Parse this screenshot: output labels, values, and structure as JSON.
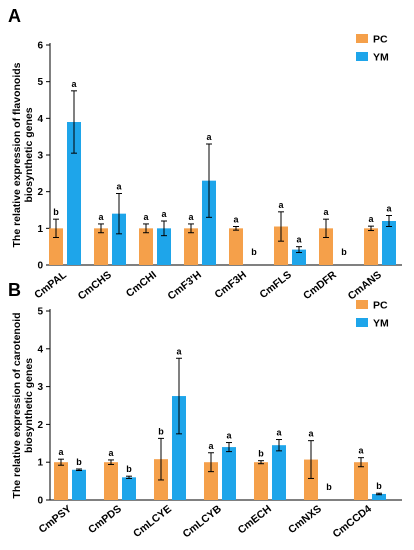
{
  "colors": {
    "PC": "#f5a04a",
    "YM": "#1ea5ea",
    "axis": "#000000"
  },
  "chart_data": [
    {
      "type": "bar",
      "panel_label": "A",
      "ylabel_lines": [
        "The relative expression of flavonoids",
        "biosynthetic genes"
      ],
      "xlabel": "",
      "ylim": [
        0,
        6
      ],
      "yticks": [
        "0",
        "1",
        "2",
        "3",
        "4",
        "5",
        "6"
      ],
      "categories": [
        "CmPAL",
        "CmCHS",
        "CmCHI",
        "CmF3'H",
        "CmF3H",
        "CmFLS",
        "CmDFR",
        "CmANS"
      ],
      "series": [
        {
          "name": "PC",
          "values": [
            1.0,
            1.0,
            1.0,
            1.0,
            1.0,
            1.05,
            1.0,
            1.0
          ],
          "errors": [
            0.25,
            0.12,
            0.12,
            0.12,
            0.05,
            0.4,
            0.25,
            0.06
          ],
          "letters": [
            "b",
            "a",
            "a",
            "a",
            "a",
            "a",
            "a",
            "a"
          ]
        },
        {
          "name": "YM",
          "values": [
            3.9,
            1.4,
            1.0,
            2.3,
            0.0,
            0.42,
            0.0,
            1.2
          ],
          "errors": [
            0.85,
            0.55,
            0.2,
            1.0,
            0.0,
            0.08,
            0.0,
            0.15
          ],
          "letters": [
            "a",
            "a",
            "a",
            "a",
            "b",
            "a",
            "b",
            "a"
          ]
        }
      ],
      "legend": {
        "position": "top-right",
        "entries": [
          "PC",
          "YM"
        ]
      },
      "grid": false
    },
    {
      "type": "bar",
      "panel_label": "B",
      "ylabel_lines": [
        "The relative expression of carotenoid",
        "biosynthetic genes"
      ],
      "xlabel": "",
      "ylim": [
        0,
        5
      ],
      "yticks": [
        "0",
        "1",
        "2",
        "3",
        "4",
        "5"
      ],
      "categories": [
        "CmPSY",
        "CmPDS",
        "CmLCYE",
        "CmLCYB",
        "CmECH",
        "CmNXS",
        "CmCCD4"
      ],
      "series": [
        {
          "name": "PC",
          "values": [
            1.0,
            1.0,
            1.08,
            1.0,
            1.0,
            1.07,
            1.0
          ],
          "errors": [
            0.08,
            0.06,
            0.55,
            0.25,
            0.04,
            0.5,
            0.12
          ],
          "letters": [
            "a",
            "a",
            "b",
            "a",
            "b",
            "a",
            "a"
          ]
        },
        {
          "name": "YM",
          "values": [
            0.8,
            0.6,
            2.75,
            1.4,
            1.45,
            0.0,
            0.16
          ],
          "errors": [
            0.02,
            0.03,
            1.0,
            0.12,
            0.15,
            0.0,
            0.02
          ],
          "letters": [
            "b",
            "b",
            "a",
            "a",
            "a",
            "b",
            "b"
          ]
        }
      ],
      "legend": {
        "position": "top-right",
        "entries": [
          "PC",
          "YM"
        ]
      },
      "grid": false
    }
  ]
}
